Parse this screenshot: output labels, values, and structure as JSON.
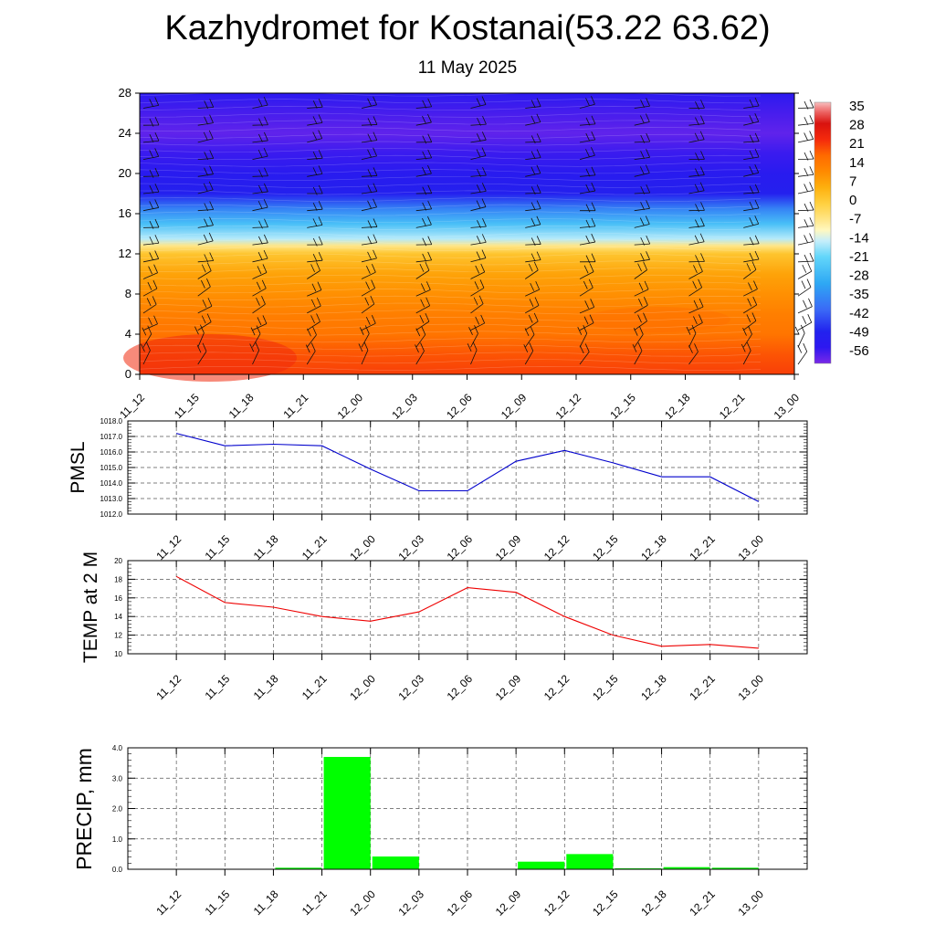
{
  "header": {
    "title": "Kazhydromet for Kostanai(53.22 63.62)",
    "subtitle": "11 May 2025"
  },
  "time_labels": [
    "11_12",
    "11_15",
    "11_18",
    "11_21",
    "12_00",
    "12_03",
    "12_06",
    "12_09",
    "12_12",
    "12_15",
    "12_18",
    "12_21",
    "13_00"
  ],
  "chart_data": [
    {
      "type": "heatmap",
      "panel": "cross-section",
      "x": [
        "11_12",
        "11_15",
        "11_18",
        "11_21",
        "12_00",
        "12_03",
        "12_06",
        "12_09",
        "12_12",
        "12_15",
        "12_18",
        "12_21",
        "13_00"
      ],
      "yticks": [
        0,
        4,
        8,
        12,
        16,
        20,
        24,
        28
      ],
      "ylim": [
        0,
        28
      ],
      "colorbar": {
        "labels": [
          "35",
          "28",
          "21",
          "14",
          "7",
          "0",
          "-7",
          "-14",
          "-21",
          "-28",
          "-35",
          "-42",
          "-49",
          "-56"
        ],
        "range": [
          -60,
          38
        ]
      },
      "temperature_profile": [
        {
          "level": 0,
          "value": 22
        },
        {
          "level": 2,
          "value": 20
        },
        {
          "level": 4,
          "value": 16
        },
        {
          "level": 6,
          "value": 14
        },
        {
          "level": 8,
          "value": 11
        },
        {
          "level": 10,
          "value": 8
        },
        {
          "level": 12,
          "value": 2
        },
        {
          "level": 12.8,
          "value": -6
        },
        {
          "level": 13.5,
          "value": -15
        },
        {
          "level": 15,
          "value": -25
        },
        {
          "level": 16.5,
          "value": -36
        },
        {
          "level": 18,
          "value": -49
        },
        {
          "level": 20,
          "value": -52
        },
        {
          "level": 22,
          "value": -55
        },
        {
          "level": 24,
          "value": -58
        },
        {
          "level": 26,
          "value": -56
        },
        {
          "level": 28,
          "value": -53
        }
      ],
      "wind_barbs": true,
      "grid": false
    },
    {
      "type": "line",
      "ylabel": "PMSL",
      "x": [
        "11_12",
        "11_15",
        "11_18",
        "11_21",
        "12_00",
        "12_03",
        "12_06",
        "12_09",
        "12_12",
        "12_15",
        "12_18",
        "12_21",
        "13_00"
      ],
      "values": [
        1017.2,
        1016.4,
        1016.5,
        1016.4,
        1014.9,
        1013.5,
        1013.5,
        1015.4,
        1016.1,
        1015.3,
        1014.4,
        1014.4,
        1012.8
      ],
      "yticks": [
        "1012.0",
        "1013.0",
        "1014.0",
        "1015.0",
        "1016.0",
        "1017.0",
        "1018.0"
      ],
      "ylim": [
        1012,
        1018
      ],
      "color": "#0000cc",
      "grid": true
    },
    {
      "type": "line",
      "ylabel": "TEMP at 2 M",
      "x": [
        "11_12",
        "11_15",
        "11_18",
        "11_21",
        "12_00",
        "12_03",
        "12_06",
        "12_09",
        "12_12",
        "12_15",
        "12_18",
        "12_21",
        "13_00"
      ],
      "values": [
        18.3,
        15.5,
        15.0,
        14.0,
        13.5,
        14.5,
        17.1,
        16.6,
        14.0,
        12.0,
        10.8,
        11.0,
        10.6
      ],
      "yticks": [
        "10",
        "12",
        "14",
        "16",
        "18",
        "20"
      ],
      "ylim": [
        10,
        20
      ],
      "color": "#ee0000",
      "grid": true
    },
    {
      "type": "bar",
      "ylabel": "PRECIP, mm",
      "x": [
        "11_12",
        "11_15",
        "11_18",
        "11_21",
        "12_00",
        "12_03",
        "12_06",
        "12_09",
        "12_12",
        "12_15",
        "12_18",
        "12_21",
        "13_00"
      ],
      "values": [
        0,
        0,
        0.05,
        3.7,
        0.42,
        0,
        0,
        0.25,
        0.5,
        0.03,
        0.07,
        0.05,
        0
      ],
      "yticks": [
        "0.0",
        "1.0",
        "2.0",
        "3.0",
        "4.0"
      ],
      "ylim": [
        0,
        4
      ],
      "color": "#00ff00",
      "grid": true
    }
  ]
}
